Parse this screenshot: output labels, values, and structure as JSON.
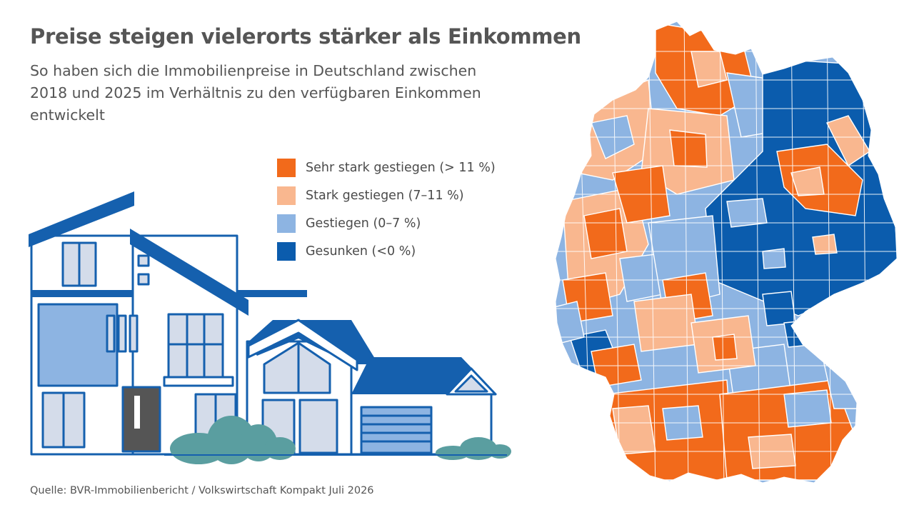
{
  "title": "Preise steigen vielerorts stärker als Einkommen",
  "subtitle": "So haben sich die Immobilienpreise in Deutschland zwischen 2018 und 2025 im Verhältnis zu den verfügbaren Einkommen entwickelt",
  "legend": [
    {
      "label": "Sehr stark gestiegen (> 11 %)",
      "color": "#f26a1b"
    },
    {
      "label": "Stark gestiegen (7–11 %)",
      "color": "#f9b78f"
    },
    {
      "label": "Gestiegen (0–7 %)",
      "color": "#8db4e2"
    },
    {
      "label": "Gesunken (<0 %)",
      "color": "#0b5cad"
    }
  ],
  "source": "Quelle: BVR-Immobilienbericht / Volkswirtschaft Kompakt Juli 2026",
  "colors": {
    "sehr_stark": "#f26a1b",
    "stark": "#f9b78f",
    "gestiegen": "#8db4e2",
    "gesunken": "#0b5cad",
    "house_blue": "#1560ae",
    "house_light": "#d4dcea",
    "bush": "#5a9ea0"
  },
  "icons": [
    "house-illustration",
    "germany-map"
  ]
}
